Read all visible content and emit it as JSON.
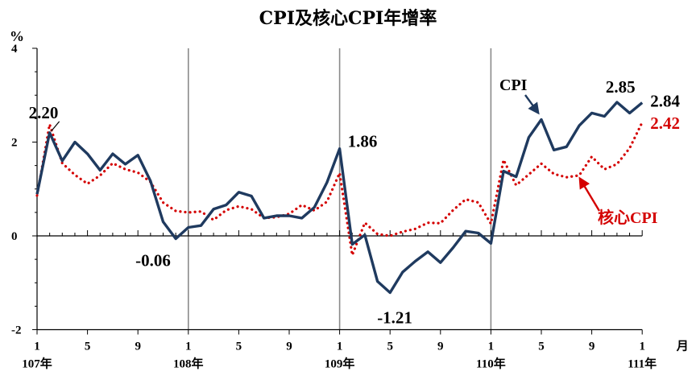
{
  "chart_data": {
    "type": "line",
    "title": "CPI及核心CPI年增率",
    "ylabel": "%",
    "xunit": "月",
    "ylim": [
      -2,
      4
    ],
    "yticks": [
      "4",
      "2",
      "0",
      "-2"
    ],
    "month_tick_labels": [
      "1",
      "5",
      "9",
      "1",
      "5",
      "9",
      "1",
      "5",
      "9",
      "1",
      "5",
      "9",
      "1"
    ],
    "year_labels": [
      "107年",
      "108年",
      "109年",
      "110年",
      "111年"
    ],
    "x_months": [
      "107/01",
      "107/02",
      "107/03",
      "107/04",
      "107/05",
      "107/06",
      "107/07",
      "107/08",
      "107/09",
      "107/10",
      "107/11",
      "107/12",
      "108/01",
      "108/02",
      "108/03",
      "108/04",
      "108/05",
      "108/06",
      "108/07",
      "108/08",
      "108/09",
      "108/10",
      "108/11",
      "108/12",
      "109/01",
      "109/02",
      "109/03",
      "109/04",
      "109/05",
      "109/06",
      "109/07",
      "109/08",
      "109/09",
      "109/10",
      "109/11",
      "109/12",
      "110/01",
      "110/02",
      "110/03",
      "110/04",
      "110/05",
      "110/06",
      "110/07",
      "110/08",
      "110/09",
      "110/10",
      "110/11",
      "110/12",
      "111/01"
    ],
    "series": [
      {
        "name": "CPI",
        "color": "#1f3a5f",
        "style": "solid",
        "values": [
          0.89,
          2.2,
          1.6,
          2.0,
          1.75,
          1.4,
          1.75,
          1.53,
          1.72,
          1.17,
          0.3,
          -0.06,
          0.18,
          0.22,
          0.57,
          0.66,
          0.93,
          0.85,
          0.38,
          0.43,
          0.43,
          0.38,
          0.61,
          1.14,
          1.86,
          -0.18,
          0.02,
          -0.97,
          -1.21,
          -0.77,
          -0.54,
          -0.34,
          -0.57,
          -0.25,
          0.1,
          0.06,
          -0.16,
          1.38,
          1.26,
          2.1,
          2.48,
          1.83,
          1.9,
          2.35,
          2.62,
          2.55,
          2.85,
          2.62,
          2.84
        ]
      },
      {
        "name": "核心CPI",
        "color": "#d40000",
        "style": "dotted",
        "values": [
          0.86,
          2.38,
          1.55,
          1.3,
          1.11,
          1.29,
          1.55,
          1.42,
          1.35,
          1.15,
          0.71,
          0.53,
          0.5,
          0.52,
          0.34,
          0.55,
          0.63,
          0.57,
          0.38,
          0.4,
          0.47,
          0.66,
          0.54,
          0.73,
          1.34,
          -0.41,
          0.28,
          0.04,
          0.0,
          0.09,
          0.15,
          0.28,
          0.27,
          0.55,
          0.78,
          0.71,
          0.26,
          1.62,
          1.08,
          1.31,
          1.54,
          1.32,
          1.25,
          1.29,
          1.69,
          1.42,
          1.53,
          1.87,
          2.42
        ]
      }
    ],
    "annotations": [
      {
        "text": "2.20",
        "month": "107/02",
        "value": 2.2,
        "color": "#000000"
      },
      {
        "text": "-0.06",
        "month": "107/12",
        "value": -0.06,
        "color": "#000000"
      },
      {
        "text": "1.86",
        "month": "109/01",
        "value": 1.86,
        "color": "#000000"
      },
      {
        "text": "-1.21",
        "month": "109/05",
        "value": -1.21,
        "color": "#000000"
      },
      {
        "text": "2.85",
        "month": "110/11",
        "value": 2.85,
        "color": "#000000"
      },
      {
        "text": "2.84",
        "month": "111/01",
        "value": 2.84,
        "color": "#000000"
      },
      {
        "text": "2.42",
        "month": "111/01",
        "value": 2.42,
        "color": "#d40000"
      }
    ],
    "legend_labels": {
      "cpi": "CPI",
      "core": "核心CPI"
    },
    "year_divider_months": [
      "108/01",
      "109/01",
      "110/01"
    ],
    "grid": false
  }
}
